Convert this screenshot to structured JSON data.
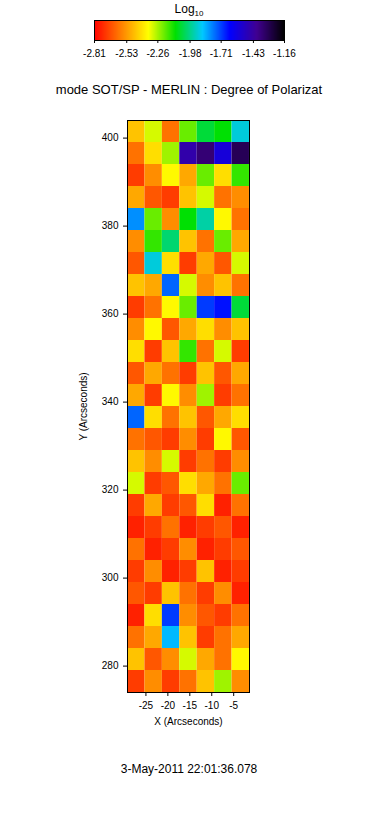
{
  "chart_data": {
    "type": "heatmap",
    "title": "mode SOT/SP - MERLIN : Degree of Polarizat",
    "x_label": "X (Arcseconds)",
    "y_label": "Y (Arcseconds)",
    "xlim": [
      -29.2,
      -1.4
    ],
    "ylim": [
      274,
      404
    ],
    "xticks": [
      -25,
      -20,
      -15,
      -10,
      -5
    ],
    "yticks": [
      280,
      300,
      320,
      340,
      360,
      380,
      400
    ],
    "cells": {
      "x": [
        -27.21,
        -23.24,
        -19.27,
        -15.3,
        -11.33,
        -7.36,
        -3.39
      ],
      "y": [
        401.5,
        396.5,
        391.5,
        386.5,
        381.5,
        376.5,
        371.5,
        366.5,
        361.5,
        356.5,
        351.5,
        346.5,
        341.5,
        336.5,
        331.5,
        326.5,
        321.5,
        316.5,
        311.5,
        306.5,
        301.5,
        296.5,
        291.5,
        286.5,
        281.5,
        276.5
      ],
      "values": [
        [
          -2.45,
          -2.3,
          -2.6,
          -2.2,
          -2.05,
          -2.1,
          -1.9
        ],
        [
          -2.6,
          -2.4,
          -2.25,
          -1.45,
          -1.35,
          -1.55,
          -1.3
        ],
        [
          -2.7,
          -2.55,
          -2.35,
          -2.5,
          -2.2,
          -2.4,
          -2.15
        ],
        [
          -2.5,
          -2.65,
          -2.7,
          -2.45,
          -2.3,
          -2.6,
          -2.55
        ],
        [
          -1.8,
          -2.2,
          -2.55,
          -2.1,
          -1.95,
          -2.35,
          -2.6
        ],
        [
          -2.55,
          -2.15,
          -2.0,
          -2.45,
          -2.6,
          -2.2,
          -2.5
        ],
        [
          -2.65,
          -1.9,
          -2.4,
          -2.7,
          -2.5,
          -2.65,
          -2.3
        ],
        [
          -2.45,
          -2.5,
          -1.75,
          -2.3,
          -2.55,
          -2.45,
          -2.6
        ],
        [
          -2.7,
          -2.6,
          -2.35,
          -2.2,
          -1.7,
          -1.65,
          -2.05
        ],
        [
          -2.55,
          -2.35,
          -2.65,
          -2.5,
          -2.4,
          -2.55,
          -2.45
        ],
        [
          -2.4,
          -2.7,
          -2.45,
          -2.15,
          -2.6,
          -2.3,
          -2.7
        ],
        [
          -2.65,
          -2.5,
          -2.6,
          -2.7,
          -2.45,
          -2.65,
          -2.5
        ],
        [
          -2.5,
          -2.7,
          -2.35,
          -2.55,
          -2.25,
          -2.7,
          -2.6
        ],
        [
          -1.75,
          -2.4,
          -2.6,
          -2.45,
          -2.65,
          -2.5,
          -2.4
        ],
        [
          -2.6,
          -2.65,
          -2.7,
          -2.55,
          -2.7,
          -2.35,
          -2.65
        ],
        [
          -2.45,
          -2.55,
          -2.3,
          -2.7,
          -2.6,
          -2.7,
          -2.55
        ],
        [
          -2.3,
          -2.7,
          -2.65,
          -2.4,
          -2.5,
          -2.6,
          -2.2
        ],
        [
          -2.7,
          -2.5,
          -2.7,
          -2.65,
          -2.4,
          -2.75,
          -2.6
        ],
        [
          -2.75,
          -2.7,
          -2.6,
          -2.75,
          -2.7,
          -2.65,
          -2.75
        ],
        [
          -2.6,
          -2.75,
          -2.7,
          -2.55,
          -2.75,
          -2.7,
          -2.65
        ],
        [
          -2.7,
          -2.55,
          -2.75,
          -2.7,
          -2.45,
          -2.75,
          -2.7
        ],
        [
          -2.65,
          -2.7,
          -2.45,
          -2.6,
          -2.7,
          -2.55,
          -2.75
        ],
        [
          -2.75,
          -2.4,
          -1.7,
          -2.55,
          -2.65,
          -2.7,
          -2.6
        ],
        [
          -2.6,
          -2.5,
          -1.85,
          -2.45,
          -2.7,
          -2.6,
          -2.5
        ],
        [
          -2.45,
          -2.65,
          -2.55,
          -2.3,
          -2.5,
          -2.6,
          -2.35
        ],
        [
          -2.7,
          -2.55,
          -2.7,
          -2.6,
          -2.45,
          -2.25,
          -2.55
        ]
      ]
    },
    "colorbar": {
      "label": "Log10",
      "range": [
        -2.81,
        -1.16
      ],
      "ticks": [
        -2.81,
        -2.53,
        -2.26,
        -1.98,
        -1.71,
        -1.43,
        -1.16
      ],
      "colors": [
        "#ff0000",
        "#ff8000",
        "#ffff00",
        "#00e000",
        "#00c8ff",
        "#0000ff",
        "#400090",
        "#000000"
      ]
    },
    "caption": "3-May-2011 22:01:36.078"
  }
}
